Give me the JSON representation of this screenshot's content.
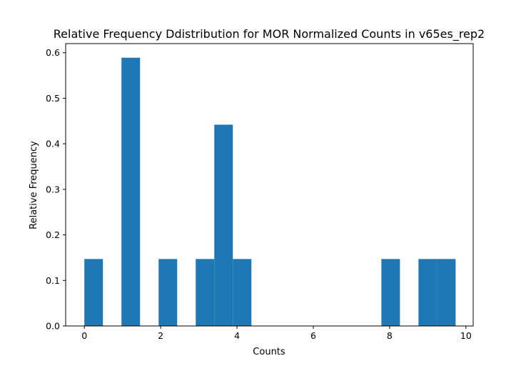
{
  "chart_data": {
    "type": "bar",
    "title": "Relative Frequency Ddistribution for MOR Normalized Counts in v65es_rep2",
    "xlabel": "Counts",
    "ylabel": "Relative Frequency",
    "xlim": [
      -0.49,
      10.19
    ],
    "ylim": [
      0,
      0.62
    ],
    "xticks": [
      0,
      2,
      4,
      6,
      8,
      10
    ],
    "xtick_labels": [
      "0",
      "2",
      "4",
      "6",
      "8",
      "10"
    ],
    "yticks": [
      0.0,
      0.1,
      0.2,
      0.3,
      0.4,
      0.5,
      0.6
    ],
    "ytick_labels": [
      "0.0",
      "0.1",
      "0.2",
      "0.3",
      "0.4",
      "0.5",
      "0.6"
    ],
    "bin_width": 0.4865,
    "bins": [
      {
        "x0": 0.0,
        "value": 0.147
      },
      {
        "x0": 0.973,
        "value": 0.589
      },
      {
        "x0": 1.946,
        "value": 0.147
      },
      {
        "x0": 2.919,
        "value": 0.147
      },
      {
        "x0": 3.405,
        "value": 0.442
      },
      {
        "x0": 3.892,
        "value": 0.147
      },
      {
        "x0": 7.784,
        "value": 0.147
      },
      {
        "x0": 8.757,
        "value": 0.147
      },
      {
        "x0": 9.243,
        "value": 0.147
      }
    ],
    "bar_color": "#1f77b4",
    "grid": false
  }
}
